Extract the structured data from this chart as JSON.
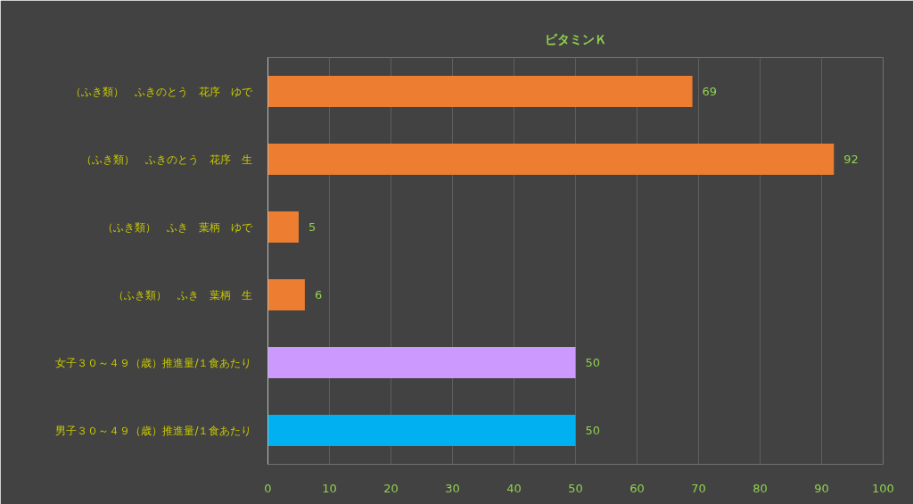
{
  "chart_data": {
    "type": "bar",
    "orientation": "horizontal",
    "title": "ビタミンＫ",
    "categories": [
      "（ふき類）　ふきのとう　花序　ゆで",
      "（ふき類）　ふきのとう　花序　生",
      "（ふき類）　ふき　葉柄　ゆで",
      "（ふき類）　ふき　葉柄　生",
      "女子３０～４９（歳）推進量/１食あたり",
      "男子３０～４９（歳）推進量/１食あたり"
    ],
    "values": [
      69,
      92,
      5,
      6,
      50,
      50
    ],
    "colors": [
      "#ed7d31",
      "#ed7d31",
      "#ed7d31",
      "#ed7d31",
      "#cc99ff",
      "#00b0f0"
    ],
    "xlim": [
      0,
      100
    ],
    "xticks": [
      0,
      10,
      20,
      30,
      40,
      50,
      60,
      70,
      80,
      90,
      100
    ],
    "grid": "x",
    "data_labels": true
  }
}
